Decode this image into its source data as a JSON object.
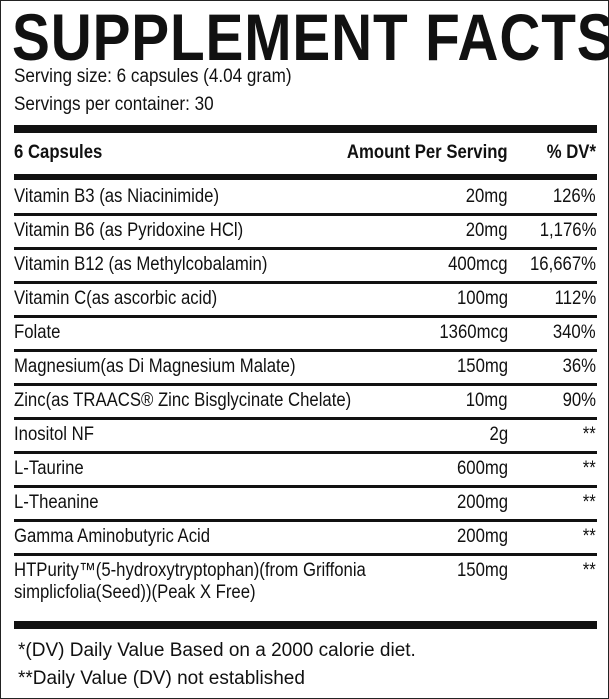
{
  "title": "SUPPLEMENT FACTS",
  "serving_size": "Serving size: 6 capsules (4.04 gram)",
  "servings_per_container": "Servings per container: 30",
  "header": {
    "col1": "6 Capsules",
    "col2": "Amount Per Serving",
    "col3": "% DV*"
  },
  "rows": [
    {
      "name": "Vitamin B3 (as Niacinimide)",
      "amount": "20mg",
      "dv": "126%"
    },
    {
      "name": "Vitamin B6 (as Pyridoxine HCl)",
      "amount": "20mg",
      "dv": "1,176%"
    },
    {
      "name": "Vitamin B12 (as Methylcobalamin)",
      "amount": "400mcg",
      "dv": "16,667%"
    },
    {
      "name": "Vitamin C(as ascorbic acid)",
      "amount": "100mg",
      "dv": "112%"
    },
    {
      "name": "Folate",
      "amount": "1360mcg",
      "dv": "340%"
    },
    {
      "name": "Magnesium(as Di Magnesium Malate)",
      "amount": "150mg",
      "dv": "36%"
    },
    {
      "name": "Zinc(as TRAACS® Zinc Bisglycinate Chelate)",
      "amount": "10mg",
      "dv": "90%"
    },
    {
      "name": "Inositol NF",
      "amount": "2g",
      "dv": "**"
    },
    {
      "name": "L-Taurine",
      "amount": "600mg",
      "dv": "**"
    },
    {
      "name": "L-Theanine",
      "amount": "200mg",
      "dv": "**"
    },
    {
      "name": "Gamma Aminobutyric Acid",
      "amount": "200mg",
      "dv": "**"
    },
    {
      "name": "HTPurity™(5-hydroxytryptophan)(from Griffonia",
      "name2": "simplicfolia(Seed))(Peak X Free)",
      "amount": "150mg",
      "dv": "**"
    }
  ],
  "footnotes": [
    "*(DV) Daily Value Based on a 2000 calorie diet.",
    "**Daily Value (DV) not established"
  ]
}
